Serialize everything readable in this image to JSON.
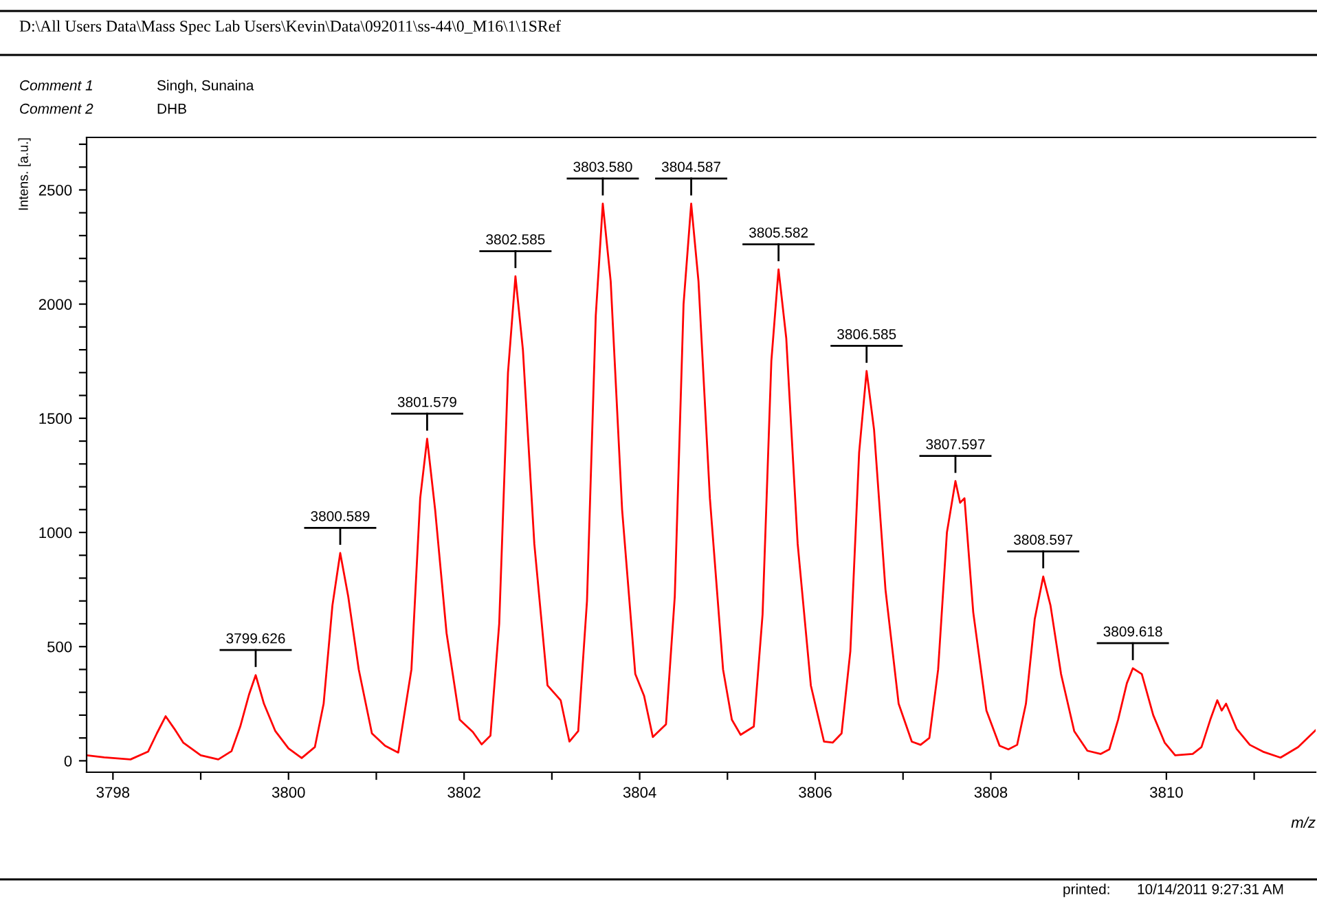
{
  "chart_data": {
    "type": "line",
    "title": "D:\\All Users Data\\Mass Spec Lab Users\\Kevin\\Data\\092011\\ss-44\\0_M16\\1\\1SRef",
    "xlabel": "m/z",
    "ylabel": "Intens. [a.u.]",
    "x": [
      3797.7,
      3797.9,
      3798.2,
      3798.4,
      3798.5,
      3798.6,
      3798.7,
      3798.8,
      3799.0,
      3799.2,
      3799.35,
      3799.45,
      3799.55,
      3799.626,
      3799.72,
      3799.85,
      3800.0,
      3800.15,
      3800.3,
      3800.4,
      3800.5,
      3800.589,
      3800.68,
      3800.8,
      3800.95,
      3801.1,
      3801.25,
      3801.4,
      3801.5,
      3801.579,
      3801.67,
      3801.8,
      3801.95,
      3802.1,
      3802.2,
      3802.3,
      3802.4,
      3802.5,
      3802.585,
      3802.67,
      3802.8,
      3802.95,
      3803.1,
      3803.2,
      3803.3,
      3803.4,
      3803.5,
      3803.58,
      3803.67,
      3803.8,
      3803.95,
      3804.05,
      3804.15,
      3804.3,
      3804.4,
      3804.5,
      3804.587,
      3804.67,
      3804.8,
      3804.95,
      3805.05,
      3805.15,
      3805.3,
      3805.4,
      3805.5,
      3805.582,
      3805.67,
      3805.8,
      3805.95,
      3806.1,
      3806.2,
      3806.3,
      3806.4,
      3806.5,
      3806.585,
      3806.67,
      3806.8,
      3806.95,
      3807.1,
      3807.2,
      3807.3,
      3807.4,
      3807.5,
      3807.597,
      3807.65,
      3807.7,
      3807.8,
      3807.95,
      3808.1,
      3808.2,
      3808.3,
      3808.4,
      3808.5,
      3808.597,
      3808.68,
      3808.8,
      3808.95,
      3809.1,
      3809.25,
      3809.35,
      3809.45,
      3809.55,
      3809.618,
      3809.72,
      3809.85,
      3809.98,
      3810.1,
      3810.3,
      3810.4,
      3810.5,
      3810.58,
      3810.63,
      3810.68,
      3810.8,
      3810.95,
      3811.1,
      3811.3,
      3811.5,
      3811.7
    ],
    "series": [
      {
        "color": "#ff0000",
        "values": [
          24,
          15,
          6,
          40,
          120,
          195,
          140,
          80,
          24,
          6,
          42,
          150,
          290,
          375,
          250,
          130,
          54,
          12,
          60,
          250,
          680,
          910,
          720,
          400,
          120,
          66,
          36,
          400,
          1150,
          1410,
          1100,
          560,
          180,
          126,
          72,
          110,
          600,
          1700,
          2122,
          1800,
          950,
          330,
          265,
          84,
          130,
          700,
          1950,
          2440,
          2100,
          1100,
          380,
          285,
          104,
          160,
          720,
          2000,
          2440,
          2100,
          1150,
          400,
          180,
          114,
          150,
          640,
          1750,
          2152,
          1850,
          950,
          330,
          84,
          80,
          120,
          480,
          1350,
          1707,
          1450,
          750,
          250,
          84,
          70,
          100,
          400,
          1000,
          1225,
          1130,
          1150,
          650,
          220,
          66,
          50,
          70,
          250,
          620,
          807,
          680,
          380,
          130,
          44,
          30,
          50,
          180,
          340,
          405,
          380,
          200,
          80,
          24,
          30,
          60,
          180,
          265,
          220,
          250,
          140,
          70,
          40,
          14,
          60,
          134
        ]
      }
    ],
    "xlim": [
      3797.7,
      3811.7
    ],
    "xticks": [
      3798,
      {
        "value": 3799,
        "label": null
      },
      3800,
      {
        "value": 3801,
        "label": null
      },
      3802,
      {
        "value": 3803,
        "label": null
      },
      3804,
      {
        "value": 3805,
        "label": null
      },
      3806,
      {
        "value": 3807,
        "label": null
      },
      3808,
      {
        "value": 3809,
        "label": null
      },
      3810,
      {
        "value": 3811,
        "label": null
      }
    ],
    "ylim": [
      -50,
      2730
    ],
    "yticks": [
      0,
      {
        "value": 100,
        "label": null
      },
      {
        "value": 200,
        "label": null
      },
      {
        "value": 300,
        "label": null
      },
      {
        "value": 400,
        "label": null
      },
      500,
      {
        "value": 600,
        "label": null
      },
      {
        "value": 700,
        "label": null
      },
      {
        "value": 800,
        "label": null
      },
      {
        "value": 900,
        "label": null
      },
      1000,
      {
        "value": 1100,
        "label": null
      },
      {
        "value": 1200,
        "label": null
      },
      {
        "value": 1300,
        "label": null
      },
      {
        "value": 1400,
        "label": null
      },
      1500,
      {
        "value": 1600,
        "label": null
      },
      {
        "value": 1700,
        "label": null
      },
      {
        "value": 1800,
        "label": null
      },
      {
        "value": 1900,
        "label": null
      },
      2000,
      {
        "value": 2100,
        "label": null
      },
      {
        "value": 2200,
        "label": null
      },
      {
        "value": 2300,
        "label": null
      },
      {
        "value": 2400,
        "label": null
      },
      2500,
      {
        "value": 2600,
        "label": null
      },
      {
        "value": 2700,
        "label": null
      }
    ],
    "grid": false,
    "legend": false,
    "marker": "none",
    "line_style": "solid",
    "annotations": [
      "Comment 1",
      "Singh, Sunaina",
      "Comment 2",
      "DHB",
      "printed:",
      "10/14/2011 9:27:31 AM",
      {
        "text": "3799.626",
        "x": 3799.626,
        "y": 375
      },
      {
        "text": "3800.589",
        "x": 3800.589,
        "y": 910
      },
      {
        "text": "3801.579",
        "x": 3801.579,
        "y": 1410
      },
      {
        "text": "3802.585",
        "x": 3802.585,
        "y": 2122
      },
      {
        "text": "3803.580",
        "x": 3803.58,
        "y": 2440
      },
      {
        "text": "3804.587",
        "x": 3804.587,
        "y": 2440
      },
      {
        "text": "3805.582",
        "x": 3805.582,
        "y": 2152
      },
      {
        "text": "3806.585",
        "x": 3806.585,
        "y": 1707
      },
      {
        "text": "3807.597",
        "x": 3807.597,
        "y": 1225
      },
      {
        "text": "3808.597",
        "x": 3808.597,
        "y": 807
      },
      {
        "text": "3809.618",
        "x": 3809.618,
        "y": 405
      }
    ]
  }
}
